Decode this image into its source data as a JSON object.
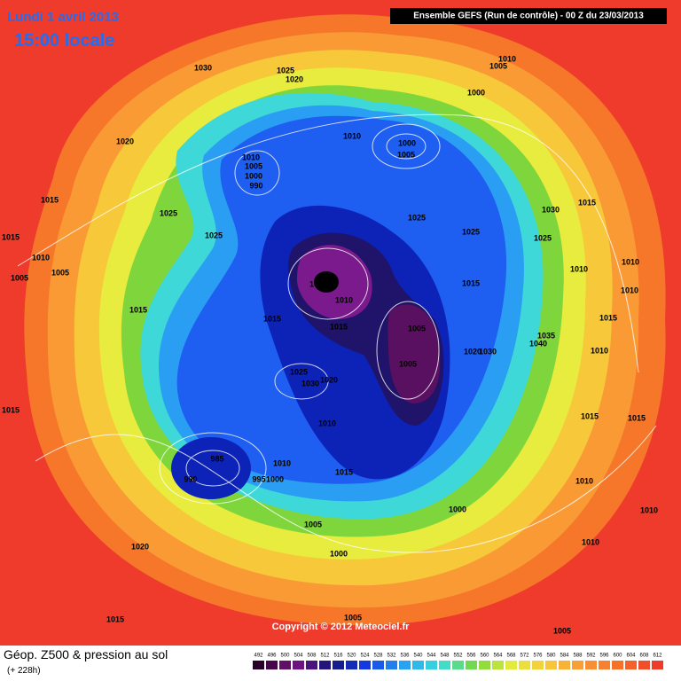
{
  "header": {
    "date": "Lundi 1 avril 2013",
    "time": "15:00 locale",
    "run": "Ensemble GEFS (Run de contrôle)  -  00 Z du 23/03/2013"
  },
  "copyright": "Copyright © 2012 Meteociel.fr",
  "footer": {
    "title": "Géop. Z500 & pression au sol",
    "lead": "(+ 228h)"
  },
  "legend": {
    "values": [
      492,
      496,
      500,
      504,
      508,
      512,
      516,
      520,
      524,
      528,
      532,
      536,
      540,
      544,
      548,
      552,
      556,
      560,
      564,
      568,
      572,
      576,
      580,
      584,
      588,
      592,
      596,
      600,
      604,
      608,
      612
    ]
  },
  "pressure_labels": [
    1030,
    1025,
    1020,
    1010,
    1005,
    1000,
    1020,
    1010,
    1000,
    1005,
    1010,
    1005,
    1000,
    990,
    1015,
    1025,
    1030,
    1015,
    1025,
    1025,
    1025,
    1025,
    1015,
    1010,
    1005,
    1005,
    1010,
    1010,
    1020,
    1015,
    1010,
    1010,
    1015,
    1015,
    1015,
    1005,
    1035,
    1040,
    1020,
    1030,
    1010,
    1015,
    1005,
    1025,
    1030,
    1020,
    1015,
    1010,
    1015,
    1015,
    985,
    1010,
    990,
    995,
    1000,
    1015,
    1010,
    1000,
    1005,
    1000,
    1020,
    1010,
    1010,
    1015,
    1005,
    1005
  ]
}
